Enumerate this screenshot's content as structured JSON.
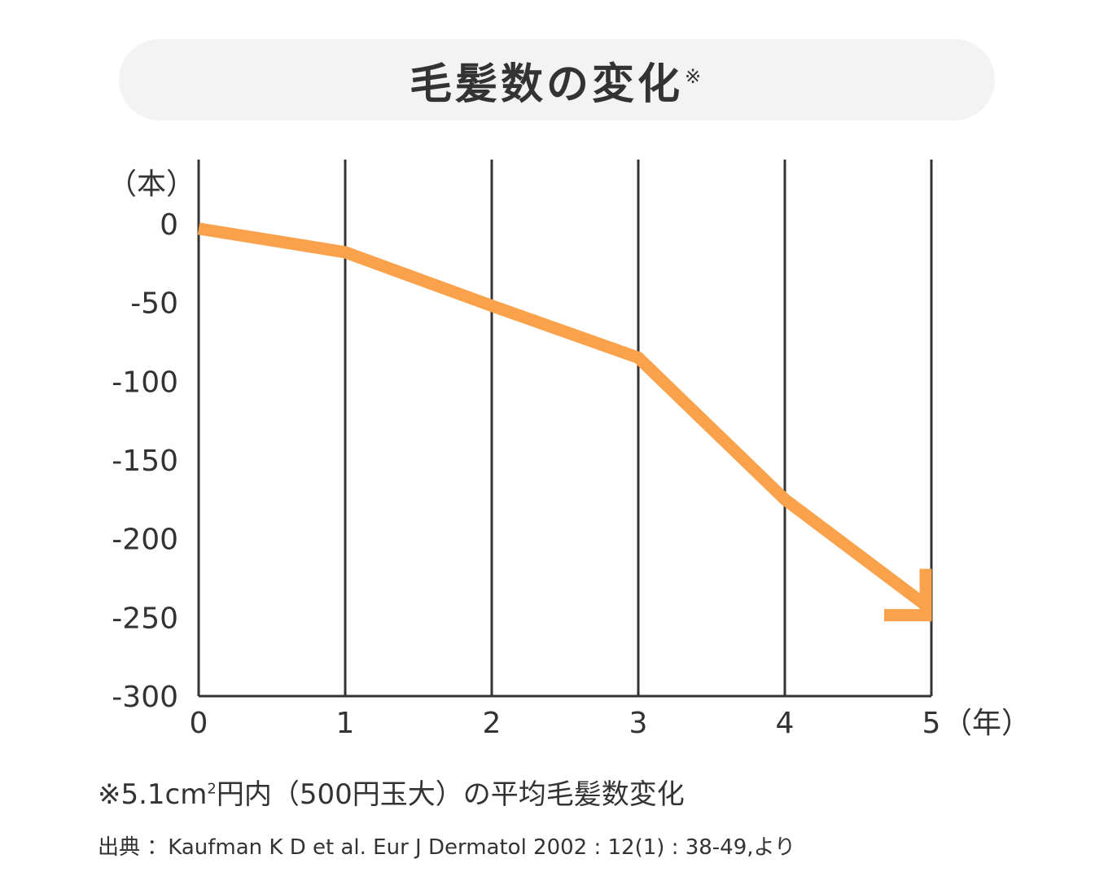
{
  "title": {
    "text": "毛髪数の変化",
    "mark": "※"
  },
  "chart_data": {
    "type": "line",
    "title": "毛髪数の変化※",
    "x": [
      0,
      1,
      2,
      3,
      4,
      5
    ],
    "xticks": [
      "0",
      "1",
      "2",
      "3",
      "4",
      "5"
    ],
    "xunit": "（年）",
    "yticks": [
      "0",
      "-50",
      "-100",
      "-150",
      "-200",
      "-250",
      "-300"
    ],
    "yunit": "（本）",
    "xlim": [
      0,
      5
    ],
    "ylim": [
      -300,
      0
    ],
    "grid": "vertical",
    "series": [
      {
        "values": [
          -3,
          -18,
          -52,
          -85,
          -175,
          -245
        ],
        "color": "#f9a24b",
        "arrow_end": true
      }
    ]
  },
  "footnote": {
    "prefix": "※5.1cm",
    "sup": "2",
    "rest": "円内（500円玉大）の平均毛髪数変化"
  },
  "source": "出典 ：Kaufman K D et al. Eur J Dermatol 2002 : 12(1) : 38-49,より"
}
